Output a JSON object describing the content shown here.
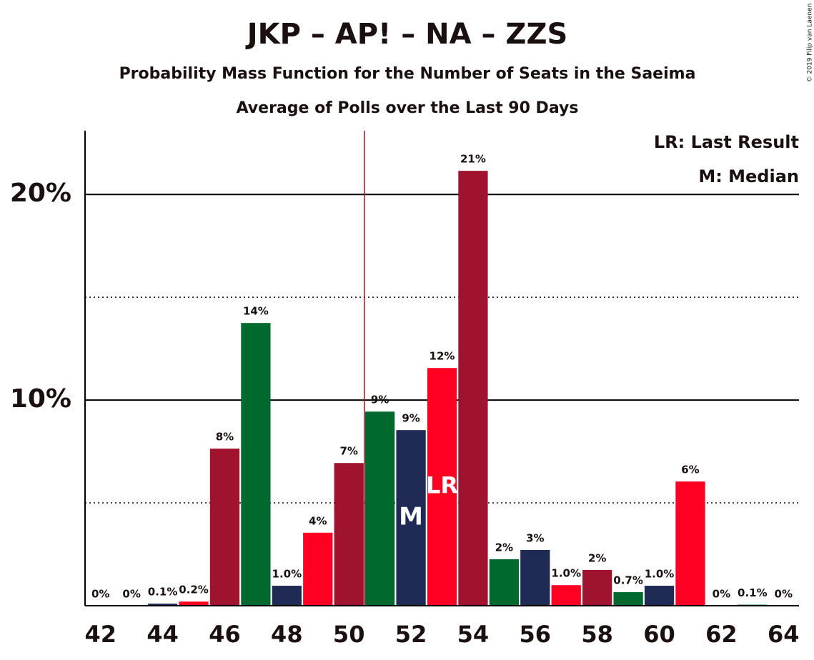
{
  "chart_data": {
    "type": "bar",
    "title": "JKP – AP! – NA – ZZS",
    "subtitle": "Probability Mass Function for the Number of Seats in the Saeima",
    "subtitle2": "Average of Polls over the Last 90 Days",
    "copyright": "© 2019 Filip van Laenen",
    "legend_lr": "LR: Last Result",
    "legend_m": "M: Median",
    "median_label": "M",
    "lr_label": "LR",
    "median": 52,
    "last_result": 53,
    "vline_x": 50.5,
    "x": [
      42,
      43,
      44,
      45,
      46,
      47,
      48,
      49,
      50,
      51,
      52,
      53,
      54,
      55,
      56,
      57,
      58,
      59,
      60,
      61,
      62,
      63,
      64
    ],
    "values": [
      0,
      0,
      0.1,
      0.2,
      7.64,
      13.75,
      0.97,
      3.55,
      6.94,
      9.44,
      8.54,
      11.56,
      21.15,
      2.26,
      2.71,
      1.0,
      1.74,
      0.66,
      0.97,
      6.04,
      0,
      0.05,
      0
    ],
    "value_labels": [
      "0%",
      "0%",
      "0.1%",
      "0.2%",
      "8%",
      "14%",
      "1.0%",
      "4%",
      "7%",
      "9%",
      "9%",
      "12%",
      "21%",
      "2%",
      "3%",
      "1.0%",
      "2%",
      "0.7%",
      "1.0%",
      "6%",
      "0%",
      "0.1%",
      "0%"
    ],
    "colors": [
      "#a0132e",
      "#006a2e",
      "#1f2a55",
      "#ff0022",
      "#a0132e",
      "#006a2e",
      "#1f2a55",
      "#ff0022",
      "#a0132e",
      "#006a2e",
      "#1f2a55",
      "#ff0022",
      "#a0132e",
      "#006a2e",
      "#1f2a55",
      "#ff0022",
      "#a0132e",
      "#006a2e",
      "#1f2a55",
      "#ff0022",
      "#a0132e",
      "#006a2e",
      "#1f2a55"
    ],
    "xlim": [
      41.5,
      64.5
    ],
    "xticks": [
      42,
      44,
      46,
      48,
      50,
      52,
      54,
      56,
      58,
      60,
      62,
      64
    ],
    "ylim": [
      0,
      23.1
    ],
    "yticks": [
      {
        "value": 10,
        "label": "10%"
      },
      {
        "value": 20,
        "label": "20%"
      }
    ],
    "minor_yticks": [
      5,
      15
    ],
    "grid": true
  }
}
